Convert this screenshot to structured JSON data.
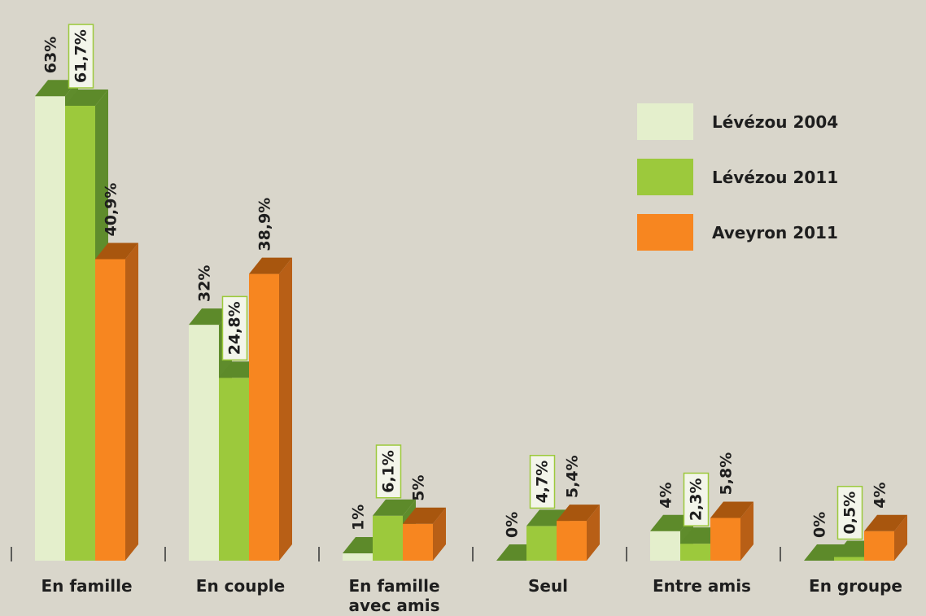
{
  "chart_data": {
    "type": "bar3d",
    "categories": [
      "En famille",
      "En couple",
      "En famille avec amis",
      "Seul",
      "Entre amis",
      "En groupe"
    ],
    "series": [
      {
        "name": "Lévézou 2004",
        "color": "#e4efcc",
        "values": [
          63,
          32,
          1,
          0,
          4,
          0
        ],
        "value_labels": [
          "63%",
          "32%",
          "1%",
          "0%",
          "4%",
          "0%"
        ]
      },
      {
        "name": "Lévézou 2011",
        "color": "#9cc93c",
        "values": [
          61.7,
          24.8,
          6.1,
          4.7,
          2.3,
          0.5
        ],
        "value_labels": [
          "61,7%",
          "24,8%",
          "6,1%",
          "4,7%",
          "2,3%",
          "0,5%"
        ]
      },
      {
        "name": "Aveyron 2011",
        "color": "#f78620",
        "values": [
          40.9,
          38.9,
          5,
          5.4,
          5.8,
          4
        ],
        "value_labels": [
          "40,9%",
          "38,9%",
          "5%",
          "5,4%",
          "5,8%",
          "4%"
        ]
      }
    ],
    "legend": "upper right"
  }
}
